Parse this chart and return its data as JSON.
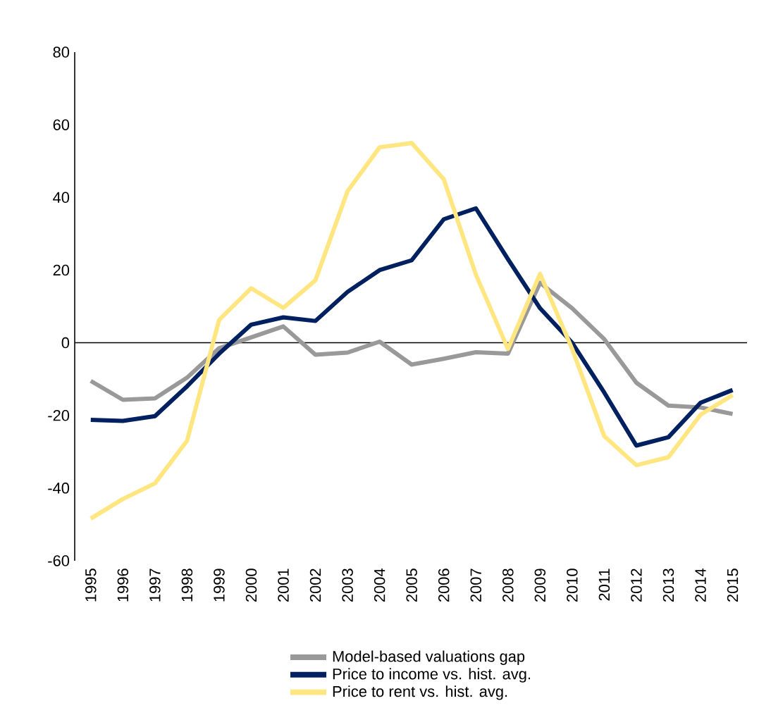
{
  "chart_data": {
    "type": "line",
    "categories": [
      "1995",
      "1996",
      "1997",
      "1998",
      "1999",
      "2000",
      "2001",
      "2002",
      "2003",
      "2004",
      "2005",
      "2006",
      "2007",
      "2008",
      "2009",
      "2010",
      "2011",
      "2012",
      "2013",
      "2014",
      "2015"
    ],
    "series": [
      {
        "name": "Model-based valuations gap",
        "color": "#999999",
        "values": [
          -10.5,
          -15.7,
          -15.3,
          -9.6,
          -1.5,
          1.5,
          4.5,
          -3.3,
          -2.7,
          0.3,
          -6,
          -4.4,
          -2.6,
          -3,
          16.5,
          9.5,
          1,
          -11,
          -17.3,
          -17.8,
          -19.6
        ]
      },
      {
        "name": "Price to income vs. hist. avg.",
        "color": "#002060",
        "values": [
          -21.2,
          -21.5,
          -20.2,
          -12,
          -3,
          5,
          7,
          6,
          14,
          20,
          22.7,
          34,
          37,
          23,
          9.5,
          0,
          -13.7,
          -28.3,
          -26,
          -16.5,
          -13
        ]
      },
      {
        "name": "Price to rent vs. hist. avg.",
        "color": "#ffe680",
        "values": [
          -48.4,
          -43,
          -38.7,
          -27,
          6.3,
          15,
          9.6,
          17.2,
          41.7,
          53.8,
          55,
          45,
          18.8,
          -1.7,
          19,
          -1.7,
          -25.7,
          -33.7,
          -31.5,
          -19.8,
          -14.4
        ]
      }
    ],
    "ylim": [
      -60,
      80
    ],
    "yticks": [
      -60,
      -40,
      -20,
      0,
      20,
      40,
      60,
      80
    ],
    "ref_lines": [
      {
        "axis": "y",
        "value": 0,
        "color": "#000000"
      }
    ],
    "grid": false,
    "legend": "bottom",
    "marker": "none",
    "line_style": "solid"
  }
}
